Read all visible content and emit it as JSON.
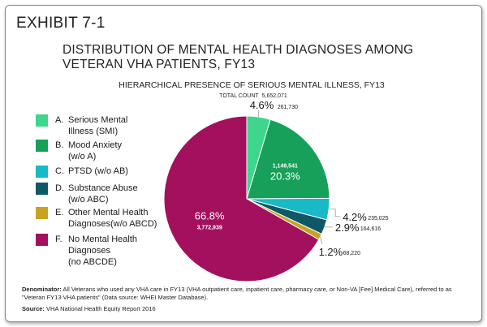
{
  "exhibit": "EXHIBIT 7-1",
  "title_line1": "DISTRIBUTION OF MENTAL HEALTH DIAGNOSES AMONG",
  "title_line2": "VETERAN VHA PATIENTS, FY13",
  "footnote": {
    "label": "Denominator:",
    "text": "All Veterans who used any VHA care in FY13 (VHA outpatient care, inpatient care, pharmacy care, or Non-VA [Fee] Medical Care), referred to as \"Veteran FY13 VHA patients\" (Data source: WHEI Master Database)."
  },
  "source": {
    "label": "Source:",
    "text": "VHA National Health Equity Report 2016"
  },
  "chart_data": {
    "type": "pie",
    "title": "HIERARCHICAL PRESENCE OF SERIOUS MENTAL ILLNESS, FY13",
    "total_label": "TOTAL COUNT",
    "total_value": "5,652,071",
    "slices": [
      {
        "letter": "A.",
        "name": "Serious Mental\nIllness (SMI)",
        "percent": 4.6,
        "percent_label": "4.6%",
        "count_label": "261,730",
        "color": "#3dd68c"
      },
      {
        "letter": "B.",
        "name": "Mood Anxiety\n(w/o A)",
        "percent": 20.3,
        "percent_label": "20.3%",
        "count_label": "1,149,541",
        "color": "#16a05a"
      },
      {
        "letter": "C.",
        "name": "PTSD (w/o AB)",
        "percent": 4.2,
        "percent_label": "4.2%",
        "count_label": "235,025",
        "color": "#17bac6"
      },
      {
        "letter": "D.",
        "name": "Substance Abuse\n(w/o ABC)",
        "percent": 2.9,
        "percent_label": "2.9%",
        "count_label": "164,616",
        "color": "#0f5866"
      },
      {
        "letter": "E.",
        "name": "Other Mental Health\nDiagnoses(w/o ABCD)",
        "percent": 1.2,
        "percent_label": "1.2%",
        "count_label": "68,220",
        "color": "#c9a222"
      },
      {
        "letter": "F.",
        "name": "No Mental Health\nDiagnoses\n(no ABCDE)",
        "percent": 66.8,
        "percent_label": "66.8%",
        "count_label": "3,772,939",
        "color": "#a3105e"
      }
    ]
  }
}
